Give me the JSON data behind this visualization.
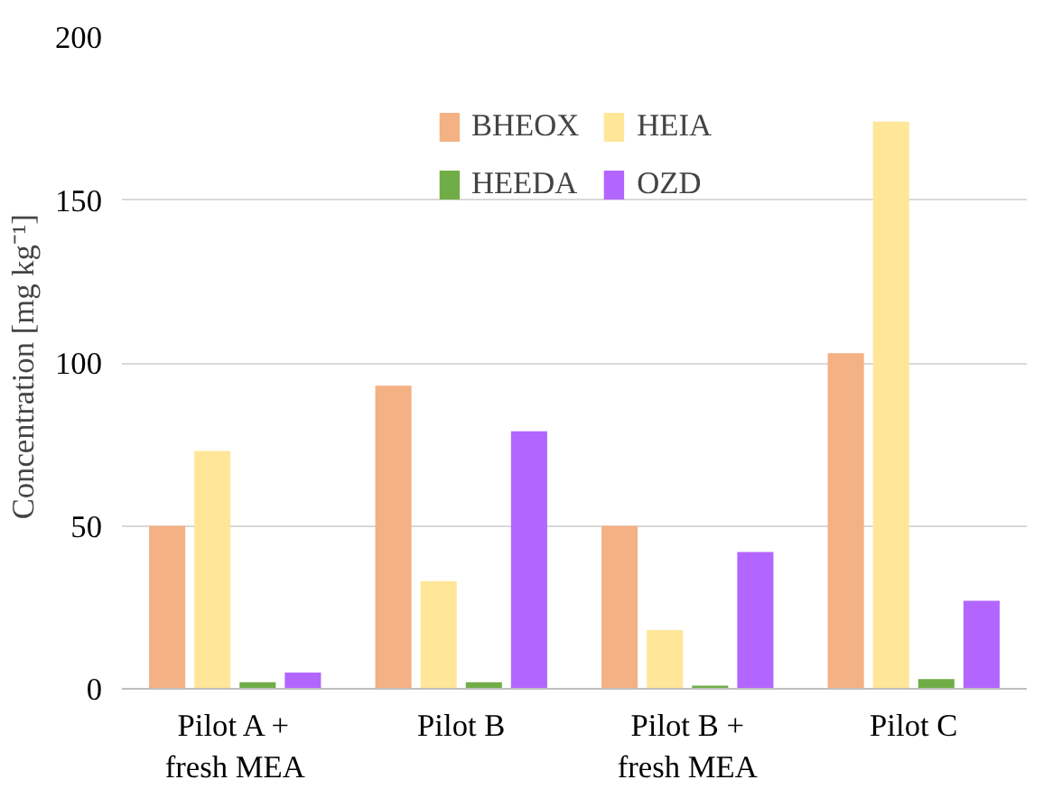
{
  "chart_data": {
    "type": "bar",
    "ylabel": "Concentration  [mg kg⁻¹]",
    "categories": [
      "Pilot A +\nfresh MEA",
      "Pilot B",
      "Pilot B +\nfresh MEA",
      "Pilot C"
    ],
    "series": [
      {
        "name": "BHEOX",
        "color": "#f4b183",
        "values": [
          50,
          93,
          50,
          103
        ]
      },
      {
        "name": "HEIA",
        "color": "#ffe699",
        "values": [
          73,
          33,
          18,
          174
        ]
      },
      {
        "name": "HEEDA",
        "color": "#70ad47",
        "values": [
          2,
          2,
          1,
          3
        ]
      },
      {
        "name": "OZD",
        "color": "#b266ff",
        "values": [
          5,
          79,
          42,
          27
        ]
      }
    ],
    "ylim": [
      0,
      200
    ],
    "yticks": [
      0,
      50,
      100,
      150,
      200
    ],
    "grid": "y",
    "legend": "top"
  }
}
